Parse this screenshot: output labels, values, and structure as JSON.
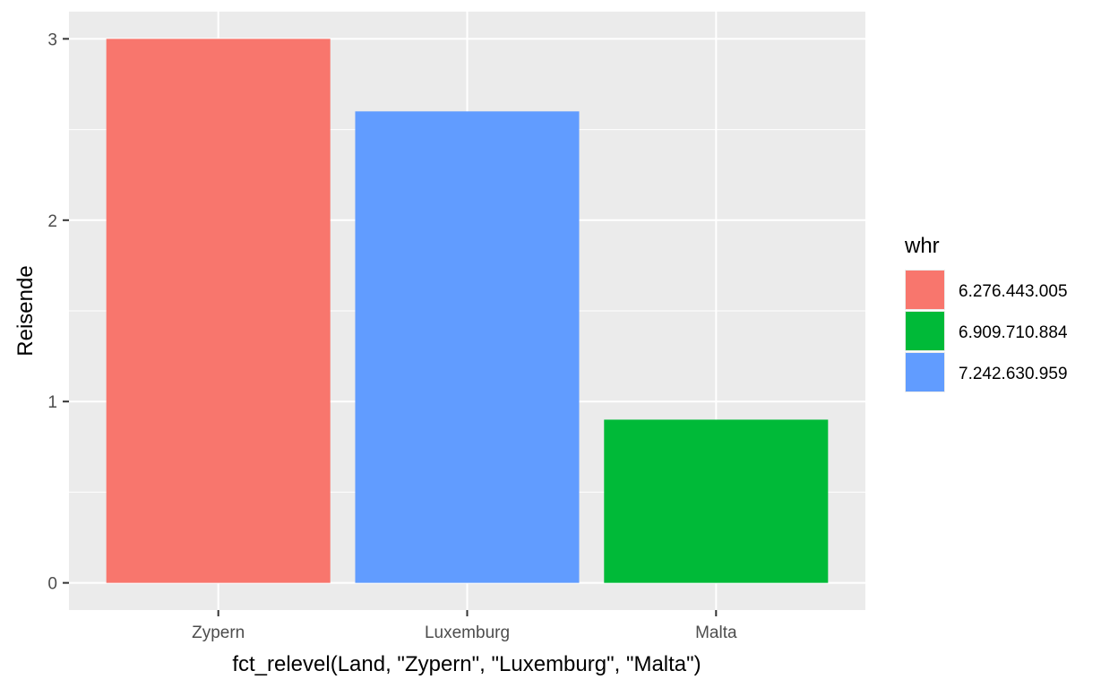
{
  "chart_data": {
    "type": "bar",
    "title": "",
    "xlabel": "fct_relevel(Land, \"Zypern\", \"Luxemburg\", \"Malta\")",
    "ylabel": "Reisende",
    "categories": [
      "Zypern",
      "Luxemburg",
      "Malta"
    ],
    "values": [
      3.0,
      2.6,
      0.9
    ],
    "bar_fill_keys": [
      "6.276.443.005",
      "7.242.630.959",
      "6.909.710.884"
    ],
    "ylim": [
      -0.15,
      3.15
    ],
    "yticks": [
      0,
      1,
      2,
      3
    ],
    "y_tick_labels": [
      "0",
      "1",
      "2",
      "3"
    ],
    "grid": true,
    "legend": {
      "title": "whr",
      "placement": "right",
      "entries": [
        {
          "label": "6.276.443.005",
          "color": "#F8766D"
        },
        {
          "label": "6.909.710.884",
          "color": "#00BA38"
        },
        {
          "label": "7.242.630.959",
          "color": "#619CFF"
        }
      ]
    },
    "colors": {
      "panel_background": "#EBEBEB",
      "grid": "#FFFFFF",
      "tick_text": "#4D4D4D",
      "tick_mark": "#333333"
    }
  }
}
